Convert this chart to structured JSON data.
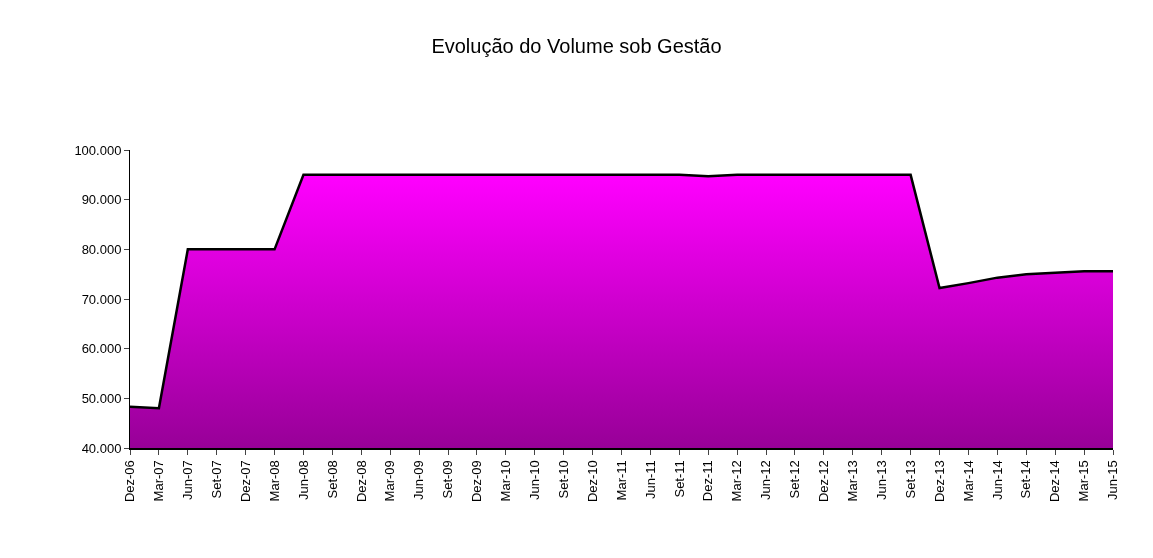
{
  "chart_data": {
    "type": "area",
    "title": "Evolução do Volume sob Gestão",
    "categories": [
      "Dez-06",
      "Mar-07",
      "Jun-07",
      "Set-07",
      "Dez-07",
      "Mar-08",
      "Jun-08",
      "Set-08",
      "Dez-08",
      "Mar-09",
      "Jun-09",
      "Set-09",
      "Dez-09",
      "Mar-10",
      "Jun-10",
      "Set-10",
      "Dez-10",
      "Mar-11",
      "Jun-11",
      "Set-11",
      "Dez-11",
      "Mar-12",
      "Jun-12",
      "Set-12",
      "Dez-12",
      "Mar-13",
      "Jun-13",
      "Set-13",
      "Dez-13",
      "Mar-14",
      "Jun-14",
      "Set-14",
      "Dez-14",
      "Mar-15",
      "Jun-15"
    ],
    "series": [
      {
        "color": "#ff00ff",
        "values": [
          48300,
          48000,
          80000,
          80000,
          80000,
          80000,
          95000,
          95000,
          95000,
          95000,
          95000,
          95000,
          95000,
          95000,
          95000,
          95000,
          95000,
          95000,
          95000,
          95000,
          94700,
          95000,
          95000,
          95000,
          95000,
          95000,
          95000,
          95000,
          72200,
          73200,
          74300,
          75000,
          75300,
          75600,
          75600
        ]
      }
    ],
    "ylim": [
      40000,
      100000
    ],
    "yticks": [
      {
        "value": 40000,
        "label": "40.000"
      },
      {
        "value": 50000,
        "label": "50.000"
      },
      {
        "value": 60000,
        "label": "60.000"
      },
      {
        "value": 70000,
        "label": "70.000"
      },
      {
        "value": 80000,
        "label": "80.000"
      },
      {
        "value": 90000,
        "label": "90.000"
      },
      {
        "value": 100000,
        "label": "100.000"
      }
    ]
  }
}
